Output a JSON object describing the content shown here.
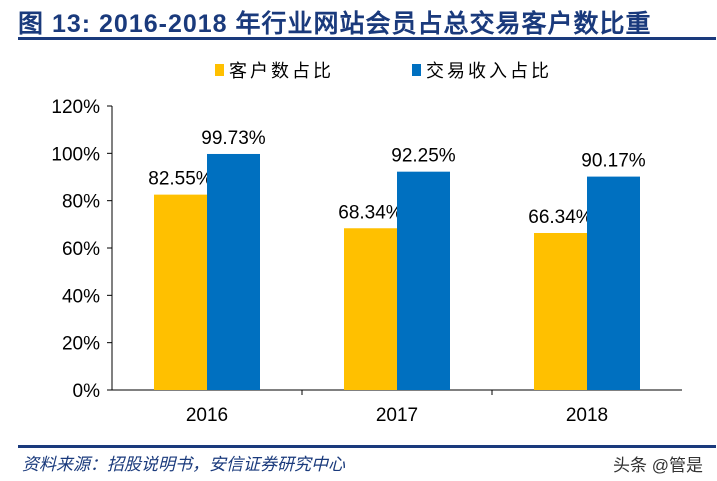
{
  "title": "图 13:   2016-2018 年行业网站会员占总交易客户数比重",
  "source": "资料来源：招股说明书，安信证券研究中心",
  "watermark": "头条 @管是",
  "chart_data": {
    "type": "bar",
    "categories": [
      "2016",
      "2017",
      "2018"
    ],
    "series": [
      {
        "name": "客户数占比",
        "values": [
          82.55,
          68.34,
          66.34
        ],
        "labels": [
          "82.55%",
          "68.34%",
          "66.34%"
        ],
        "color": "#FFC000"
      },
      {
        "name": "交易收入占比",
        "values": [
          99.73,
          92.25,
          90.17
        ],
        "labels": [
          "99.73%",
          "92.25%",
          "90.17%"
        ],
        "color": "#0070C0"
      }
    ],
    "ylim": [
      0,
      120
    ],
    "yticks": [
      "0%",
      "20%",
      "40%",
      "60%",
      "80%",
      "100%",
      "120%"
    ],
    "grid": false,
    "legend": "top"
  }
}
